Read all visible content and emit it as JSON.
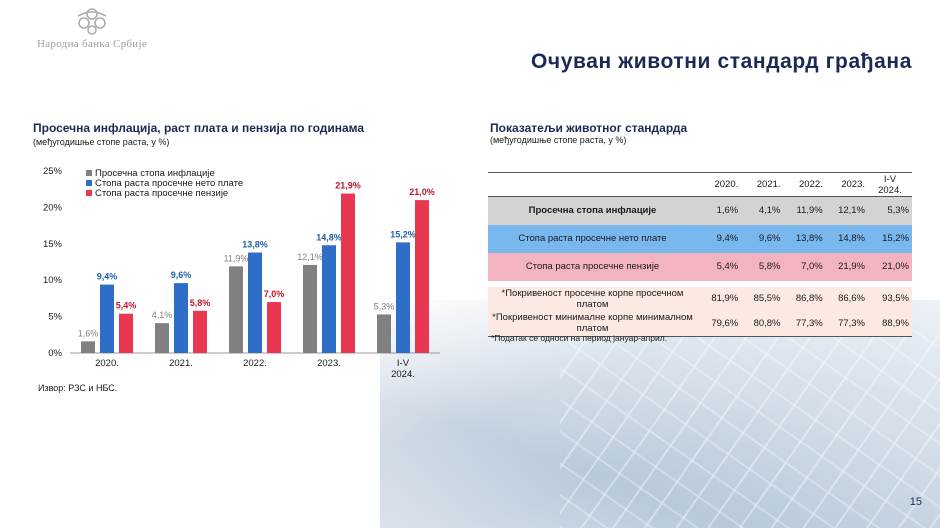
{
  "logo": {
    "name": "Народна банка Србије"
  },
  "page_title": "Очуван животни стандард грађана",
  "left_panel": {
    "title": "Просечна инфлација, раст плата и пензија по годинама",
    "subtitle": "(међугодишње стопе раста, у %)",
    "source": "Извор: РЗС и НБС."
  },
  "chart_data": {
    "type": "bar",
    "categories": [
      "2020.",
      "2021.",
      "2022.",
      "2023.",
      "I-V 2024."
    ],
    "series": [
      {
        "name": "Просечна стопа инфлације",
        "values": [
          1.6,
          4.1,
          11.9,
          12.1,
          5.3
        ],
        "labels": [
          "1,6%",
          "4,1%",
          "11,9%",
          "12,1%",
          "5,3%"
        ],
        "color": "#808080",
        "label_color": "#808080"
      },
      {
        "name": "Стопа раста просечне нето плате",
        "values": [
          9.4,
          9.6,
          13.8,
          14.8,
          15.2
        ],
        "labels": [
          "9,4%",
          "9,6%",
          "13,8%",
          "14,8%",
          "15,2%"
        ],
        "color": "#2f6ec7",
        "label_color": "#1f5faa"
      },
      {
        "name": "Стопа раста просечне пензије",
        "values": [
          5.4,
          5.8,
          7.0,
          21.9,
          21.0
        ],
        "labels": [
          "5,4%",
          "5,8%",
          "7,0%",
          "21,9%",
          "21,0%"
        ],
        "color": "#e8374f",
        "label_color": "#c0142a"
      }
    ],
    "yticks": [
      "0%",
      "5%",
      "10%",
      "15%",
      "20%",
      "25%"
    ],
    "ylim": [
      0,
      25
    ],
    "legend_position": "top-left",
    "grid": false
  },
  "right_panel": {
    "title": "Показатељи животног стандарда",
    "subtitle": "(међугодишње стопе раста, у %)",
    "columns": [
      "2020.",
      "2021.",
      "2022.",
      "2023.",
      "I-V 2024."
    ],
    "rows": [
      {
        "label": "Просечна стопа инфлације",
        "values": [
          "1,6%",
          "4,1%",
          "11,9%",
          "12,1%",
          "5,3%"
        ]
      },
      {
        "label": "Стопа раста просечне нето плате",
        "values": [
          "9,4%",
          "9,6%",
          "13,8%",
          "14,8%",
          "15,2%"
        ]
      },
      {
        "label": "Стопа раста просечне пензије",
        "values": [
          "5,4%",
          "5,8%",
          "7,0%",
          "21,9%",
          "21,0%"
        ]
      },
      {
        "label": "*Покривеност просечне корпе просечном платом",
        "values": [
          "81,9%",
          "85,5%",
          "86,8%",
          "86,6%",
          "93,5%"
        ]
      },
      {
        "label": "*Покривеност минималне корпе минималном платом",
        "values": [
          "79,6%",
          "80,8%",
          "77,3%",
          "77,3%",
          "88,9%"
        ]
      }
    ],
    "footnote": "*Податак се односи на период јануар-април."
  },
  "page_number": "15",
  "colors": {
    "title": "#1b2a55",
    "inflation": "#808080",
    "net_wage": "#2f6ec7",
    "pension": "#e8374f"
  }
}
